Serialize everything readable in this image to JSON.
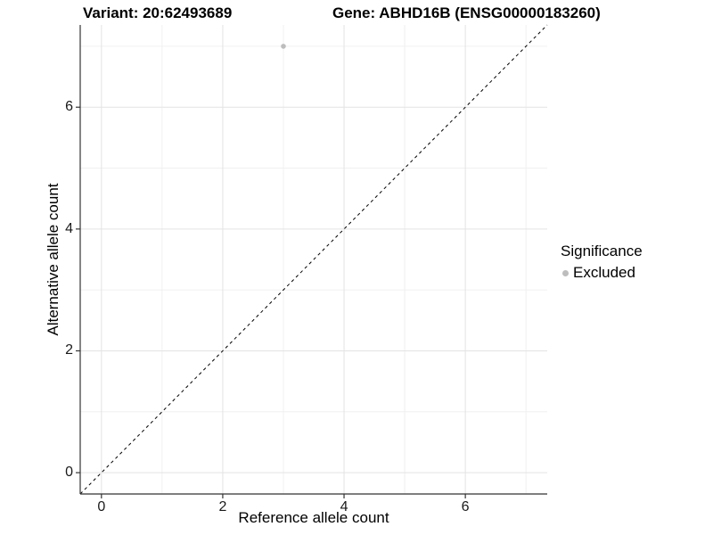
{
  "header": {
    "variant_title": "Variant: 20:62493689",
    "gene_title": "Gene: ABHD16B (ENSG00000183260)"
  },
  "chart_data": {
    "type": "scatter",
    "title_left": "Variant: 20:62493689",
    "title_right": "Gene: ABHD16B (ENSG00000183260)",
    "xlabel": "Reference allele count",
    "ylabel": "Alternative allele count",
    "xlim": [
      -0.35,
      7.35
    ],
    "ylim": [
      -0.35,
      7.35
    ],
    "x_ticks": [
      0,
      2,
      4,
      6
    ],
    "y_ticks": [
      0,
      2,
      4,
      6
    ],
    "x_minor_ticks": [
      1,
      3,
      5,
      7
    ],
    "y_minor_ticks": [
      1,
      3,
      5,
      7
    ],
    "grid": {
      "major": "on",
      "minor": "on"
    },
    "points": [
      {
        "x": 3,
        "y": 7,
        "significance": "Excluded"
      }
    ],
    "identity_line": {
      "type": "dashed",
      "from": -0.35,
      "to": 7.35,
      "color": "#000000"
    },
    "legend": {
      "position": "right",
      "title": "Significance",
      "items": [
        {
          "label": "Excluded",
          "color": "#bdbdbd"
        }
      ]
    },
    "colors": {
      "point": "#bdbdbd",
      "axis_line": "#333333",
      "tick_mark": "#333333",
      "grid_major": "#e3e3e3",
      "grid_minor": "#f0f0f0",
      "background": "#ffffff"
    }
  }
}
